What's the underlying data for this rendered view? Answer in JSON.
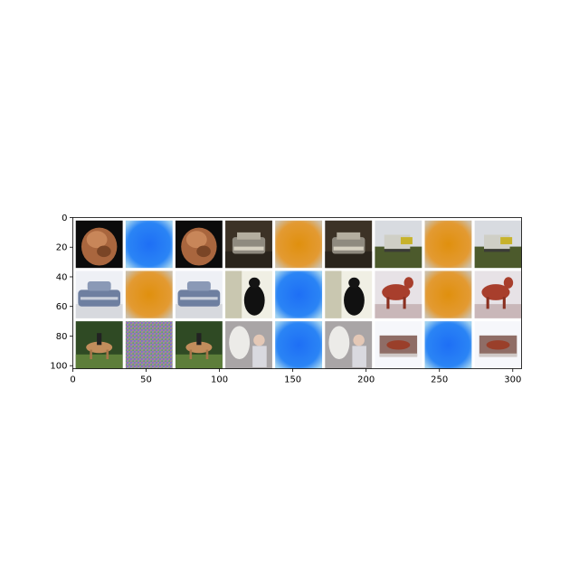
{
  "chart_data": {
    "type": "image-grid",
    "title": "",
    "xlabel": "",
    "ylabel": "",
    "xlim": [
      0,
      306
    ],
    "ylim": [
      102,
      0
    ],
    "xticks": [
      0,
      50,
      100,
      150,
      200,
      250,
      300
    ],
    "yticks": [
      0,
      20,
      40,
      60,
      80,
      100
    ],
    "grid": false,
    "tile_size": 32,
    "gap": 2,
    "rows": [
      [
        "ct-scan-object",
        "blue-blob",
        "ct-scan-object",
        "car-front",
        "orange-blob",
        "car-front",
        "truck-field",
        "orange-blob",
        "truck-field"
      ],
      [
        "blue-car",
        "orange-blob",
        "blue-car",
        "black-cat",
        "blue-blob",
        "black-cat",
        "red-horse",
        "orange-blob",
        "red-horse"
      ],
      [
        "horse-rider",
        "noise-pattern",
        "horse-rider",
        "white-horse-person",
        "blue-blob",
        "white-horse-person",
        "horse-small",
        "blue-blob",
        "horse-small"
      ]
    ]
  }
}
